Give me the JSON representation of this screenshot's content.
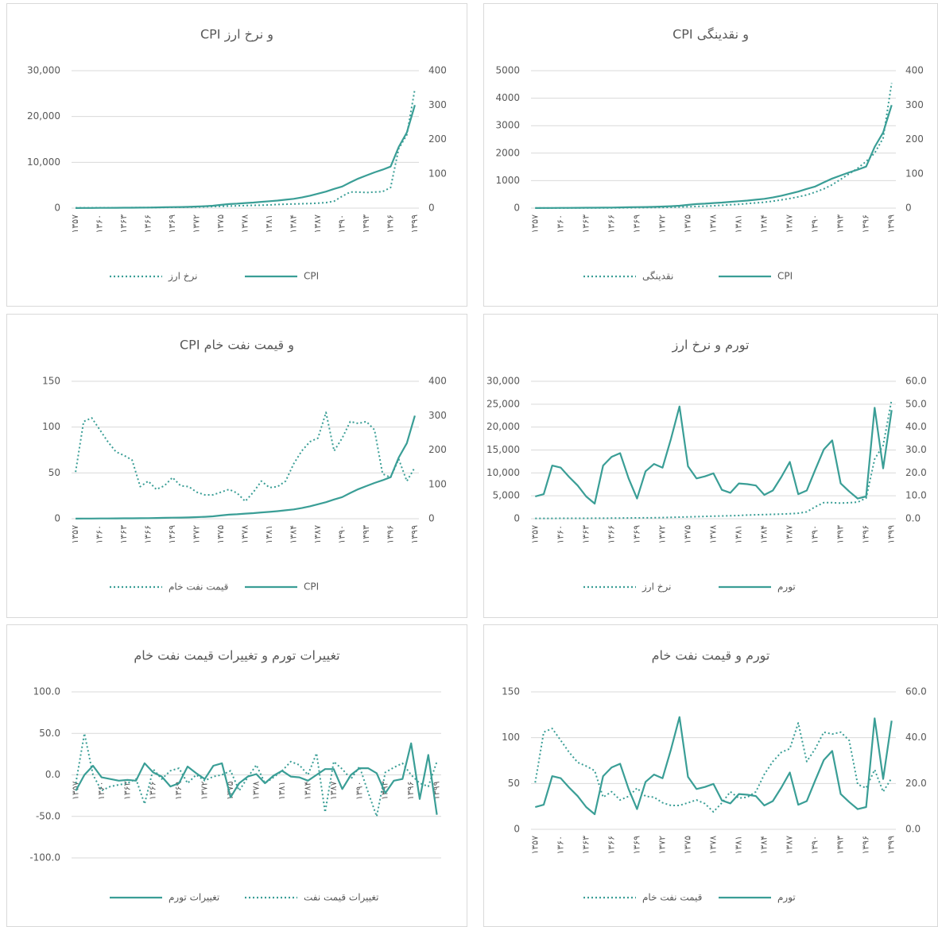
{
  "chart_data": [
    {
      "type": "line",
      "title": "CPI و نرخ ارز",
      "categories": [
        "۱۳۵۷",
        null,
        null,
        "۱۳۶۰",
        null,
        null,
        "۱۳۶۳",
        null,
        null,
        "۱۳۶۶",
        null,
        null,
        "۱۳۶۹",
        null,
        null,
        "۱۳۷۲",
        null,
        null,
        "۱۳۷۵",
        null,
        null,
        "۱۳۷۸",
        null,
        null,
        "۱۳۸۱",
        null,
        null,
        "۱۳۸۴",
        null,
        null,
        "۱۳۸۷",
        null,
        null,
        "۱۳۹۰",
        null,
        null,
        "۱۳۹۳",
        null,
        null,
        "۱۳۹۶",
        null,
        null,
        "۱۳۹۹"
      ],
      "ylim": [
        0,
        30000
      ],
      "yticks": [
        0,
        {
          "value": 10000,
          "label": "10,000"
        },
        {
          "value": 20000,
          "label": "20,000"
        },
        {
          "value": 30000,
          "label": "30,000"
        }
      ],
      "y2lim": [
        0,
        400
      ],
      "y2ticks": [
        0,
        100,
        200,
        300,
        400
      ],
      "grid": true,
      "series": [
        {
          "name": "CPI",
          "color": "#3a9e96",
          "style": "solid",
          "axis": "y2",
          "values": [
            0.3,
            0.4,
            0.5,
            0.6,
            0.7,
            0.9,
            1.1,
            1.2,
            1.4,
            1.7,
            2.1,
            2.5,
            2.9,
            3.3,
            3.8,
            4.6,
            5.6,
            7.0,
            9.4,
            11.7,
            12.9,
            14.7,
            16.3,
            18.2,
            20.0,
            22.0,
            24.5,
            27.0,
            31.0,
            36.0,
            42.0,
            48.0,
            56.0,
            63.0,
            75.0,
            86.0,
            95.0,
            104.0,
            112.0,
            121.0,
            178.0,
            220.0,
            300.0
          ]
        },
        {
          "name": "نرخ ارز",
          "color": "#3a9e96",
          "style": "dotted",
          "values": [
            70,
            70,
            70,
            80,
            85,
            90,
            95,
            100,
            110,
            120,
            140,
            150,
            170,
            190,
            200,
            250,
            300,
            350,
            400,
            450,
            500,
            550,
            600,
            650,
            700,
            800,
            850,
            900,
            950,
            1000,
            1100,
            1200,
            1500,
            2600,
            3500,
            3500,
            3400,
            3500,
            3600,
            4500,
            13000,
            16000,
            26000
          ]
        }
      ]
    },
    {
      "type": "line",
      "title": "CPI و نقدینگی",
      "categories": [
        "۱۳۵۷",
        null,
        null,
        "۱۳۶۰",
        null,
        null,
        "۱۳۶۳",
        null,
        null,
        "۱۳۶۶",
        null,
        null,
        "۱۳۶۹",
        null,
        null,
        "۱۳۷۲",
        null,
        null,
        "۱۳۷۵",
        null,
        null,
        "۱۳۷۸",
        null,
        null,
        "۱۳۸۱",
        null,
        null,
        "۱۳۸۴",
        null,
        null,
        "۱۳۸۷",
        null,
        null,
        "۱۳۹۰",
        null,
        null,
        "۱۳۹۳",
        null,
        null,
        "۱۳۹۶",
        null,
        null,
        "۱۳۹۹"
      ],
      "ylim": [
        0,
        5000
      ],
      "yticks": [
        0,
        1000,
        2000,
        3000,
        4000,
        5000
      ],
      "y2lim": [
        0,
        400
      ],
      "y2ticks": [
        0,
        100,
        200,
        300,
        400
      ],
      "grid": true,
      "series": [
        {
          "name": "CPI",
          "color": "#3a9e96",
          "style": "solid",
          "axis": "y2",
          "values": [
            0.3,
            0.4,
            0.5,
            0.6,
            0.7,
            0.9,
            1.1,
            1.2,
            1.4,
            1.7,
            2.1,
            2.5,
            2.9,
            3.3,
            3.8,
            4.6,
            5.6,
            7.0,
            9.4,
            11.7,
            12.9,
            14.7,
            16.3,
            18.2,
            20.0,
            22.0,
            24.5,
            27.0,
            31.0,
            36.0,
            42.0,
            48.0,
            56.0,
            63.0,
            75.0,
            86.0,
            95.0,
            104.0,
            112.0,
            121.0,
            178.0,
            220.0,
            300.0
          ]
        },
        {
          "name": "نقدینگی",
          "color": "#3a9e96",
          "style": "dotted",
          "values": [
            2,
            3,
            3,
            4,
            5,
            6,
            7,
            8,
            9,
            10,
            12,
            14,
            16,
            19,
            22,
            26,
            32,
            40,
            50,
            60,
            70,
            85,
            100,
            120,
            140,
            165,
            190,
            215,
            250,
            300,
            350,
            410,
            480,
            580,
            700,
            850,
            1050,
            1250,
            1450,
            1700,
            2000,
            2550,
            4550
          ]
        }
      ]
    },
    {
      "type": "line",
      "title": "CPI و قیمت نفت خام",
      "categories": [
        "۱۳۵۷",
        null,
        null,
        "۱۳۶۰",
        null,
        null,
        "۱۳۶۳",
        null,
        null,
        "۱۳۶۶",
        null,
        null,
        "۱۳۶۹",
        null,
        null,
        "۱۳۷۲",
        null,
        null,
        "۱۳۷۵",
        null,
        null,
        "۱۳۷۸",
        null,
        null,
        "۱۳۸۱",
        null,
        null,
        "۱۳۸۴",
        null,
        null,
        "۱۳۸۷",
        null,
        null,
        "۱۳۹۰",
        null,
        null,
        "۱۳۹۳",
        null,
        null,
        "۱۳۹۶",
        null,
        null,
        "۱۳۹۹"
      ],
      "ylim": [
        0,
        150
      ],
      "yticks": [
        0,
        50,
        100,
        150
      ],
      "y2lim": [
        0,
        400
      ],
      "y2ticks": [
        0,
        100,
        200,
        300,
        400
      ],
      "grid": true,
      "series": [
        {
          "name": "CPI",
          "color": "#3a9e96",
          "style": "solid",
          "axis": "y2",
          "values": [
            0.3,
            0.4,
            0.5,
            0.6,
            0.7,
            0.9,
            1.1,
            1.2,
            1.4,
            1.7,
            2.1,
            2.5,
            2.9,
            3.3,
            3.8,
            4.6,
            5.6,
            7.0,
            9.4,
            11.7,
            12.9,
            14.7,
            16.3,
            18.2,
            20.0,
            22.0,
            24.5,
            27.0,
            31.0,
            36.0,
            42.0,
            48.0,
            56.0,
            63.0,
            75.0,
            86.0,
            95.0,
            104.0,
            112.0,
            121.0,
            178.0,
            220.0,
            300.0
          ]
        },
        {
          "name": "قیمت نفت خام",
          "color": "#3a9e96",
          "style": "dotted",
          "values": [
            51,
            106,
            110,
            97,
            84,
            73,
            69,
            64,
            35,
            41,
            32,
            36,
            45,
            36,
            35,
            29,
            26,
            26,
            29,
            32,
            28,
            19,
            29,
            41,
            34,
            35,
            41,
            60,
            74,
            84,
            88,
            116,
            74,
            88,
            106,
            104,
            106,
            97,
            49,
            45,
            65,
            41,
            56
          ]
        }
      ]
    },
    {
      "type": "line",
      "title": "تورم و نرخ ارز",
      "categories": [
        "۱۳۵۷",
        null,
        null,
        "۱۳۶۰",
        null,
        null,
        "۱۳۶۳",
        null,
        null,
        "۱۳۶۶",
        null,
        null,
        "۱۳۶۹",
        null,
        null,
        "۱۳۷۲",
        null,
        null,
        "۱۳۷۵",
        null,
        null,
        "۱۳۷۸",
        null,
        null,
        "۱۳۸۱",
        null,
        null,
        "۱۳۸۴",
        null,
        null,
        "۱۳۸۷",
        null,
        null,
        "۱۳۹۰",
        null,
        null,
        "۱۳۹۳",
        null,
        null,
        "۱۳۹۶",
        null,
        null,
        "۱۳۹۹"
      ],
      "ylim": [
        0,
        30000
      ],
      "yticks": [
        0,
        {
          "value": 5000,
          "label": "5,000"
        },
        {
          "value": 10000,
          "label": "10,000"
        },
        {
          "value": 15000,
          "label": "15,000"
        },
        {
          "value": 20000,
          "label": "20,000"
        },
        {
          "value": 25000,
          "label": "25,000"
        },
        {
          "value": 30000,
          "label": "30,000"
        }
      ],
      "y2lim": [
        0,
        60
      ],
      "y2ticks": [
        {
          "value": 0,
          "label": "0.0"
        },
        {
          "value": 10,
          "label": "10.0"
        },
        {
          "value": 20,
          "label": "20.0"
        },
        {
          "value": 30,
          "label": "30.0"
        },
        {
          "value": 40,
          "label": "40.0"
        },
        {
          "value": 50,
          "label": "50.0"
        },
        {
          "value": 60,
          "label": "60.0"
        }
      ],
      "grid": true,
      "series": [
        {
          "name": "تورم",
          "color": "#3a9e96",
          "style": "solid",
          "axis": "y2",
          "values": [
            9.7,
            10.7,
            23.2,
            22.3,
            18.2,
            14.5,
            9.7,
            6.6,
            23.2,
            27.0,
            28.6,
            17.6,
            8.8,
            20.7,
            23.9,
            22.3,
            34.9,
            49.0,
            22.9,
            17.6,
            18.5,
            19.8,
            12.6,
            11.3,
            15.4,
            15.1,
            14.5,
            10.4,
            12.3,
            18.2,
            24.8,
            10.7,
            12.3,
            21.4,
            30.2,
            34.2,
            15.4,
            11.9,
            8.8,
            9.7,
            48.4,
            22.0,
            47.4
          ]
        },
        {
          "name": "نرخ ارز",
          "color": "#3a9e96",
          "style": "dotted",
          "values": [
            70,
            70,
            70,
            80,
            85,
            90,
            95,
            100,
            110,
            120,
            140,
            150,
            170,
            190,
            200,
            250,
            300,
            350,
            400,
            450,
            500,
            550,
            600,
            650,
            700,
            800,
            850,
            900,
            950,
            1000,
            1100,
            1200,
            1500,
            2600,
            3500,
            3500,
            3400,
            3500,
            3600,
            4500,
            13000,
            16000,
            26000
          ]
        }
      ]
    },
    {
      "type": "line",
      "title": "تغییرات تورم و تغییرات قیمت نفت خام",
      "categories": [
        "۱۳۵۷",
        null,
        null,
        "۱۳۶۰",
        null,
        null,
        "۱۳۶۳",
        null,
        null,
        "۱۳۶۶",
        null,
        null,
        "۱۳۶۹",
        null,
        null,
        "۱۳۷۲",
        null,
        null,
        "۱۳۷۵",
        null,
        null,
        "۱۳۷۸",
        null,
        null,
        "۱۳۸۱",
        null,
        null,
        "۱۳۸۴",
        null,
        null,
        "۱۳۸۷",
        null,
        null,
        "۱۳۹۰",
        null,
        null,
        "۱۳۹۳",
        null,
        null,
        "۱۳۹۶",
        null,
        null,
        "۱۳۹۹"
      ],
      "ylim": [
        -100,
        100
      ],
      "yticks": [
        {
          "value": -100,
          "label": "-100.0"
        },
        {
          "value": -50,
          "label": "-50.0"
        },
        {
          "value": 0,
          "label": "0.0"
        },
        {
          "value": 50,
          "label": "50.0"
        },
        {
          "value": 100,
          "label": "100.0"
        }
      ],
      "grid": true,
      "series": [
        {
          "name": "تغییرات قیمت نفت",
          "color": "#3a9e96",
          "style": "dotted",
          "values": [
            -10,
            50,
            0,
            -19,
            -14,
            -12,
            -10,
            -5,
            -35,
            7,
            -5,
            5,
            8,
            -10,
            0,
            -7,
            -2,
            0,
            5,
            -19,
            -3,
            12,
            -10,
            -3,
            5,
            16,
            12,
            0,
            26,
            -45,
            16,
            7,
            -5,
            10,
            -21,
            -50,
            3,
            9,
            14,
            0,
            -10,
            -14,
            16
          ]
        },
        {
          "name": "تغییرات تورم",
          "color": "#3a9e96",
          "style": "solid",
          "values": [
            -19,
            0,
            11,
            -3,
            -5,
            -7,
            -6,
            -7,
            14,
            3,
            -2,
            -14,
            -10,
            10,
            2,
            -5,
            11,
            14,
            -27,
            -10,
            -2,
            1,
            -10,
            -1,
            5,
            -2,
            -3,
            -7,
            0,
            7,
            7,
            -17,
            0,
            8,
            8,
            2,
            -22,
            -7,
            -5,
            38,
            -29,
            24,
            -48
          ]
        }
      ]
    },
    {
      "type": "line",
      "title": "تورم و قیمت نفت خام",
      "categories": [
        "۱۳۵۷",
        null,
        null,
        "۱۳۶۰",
        null,
        null,
        "۱۳۶۳",
        null,
        null,
        "۱۳۶۶",
        null,
        null,
        "۱۳۶۹",
        null,
        null,
        "۱۳۷۲",
        null,
        null,
        "۱۳۷۵",
        null,
        null,
        "۱۳۷۸",
        null,
        null,
        "۱۳۸۱",
        null,
        null,
        "۱۳۸۴",
        null,
        null,
        "۱۳۸۷",
        null,
        null,
        "۱۳۹۰",
        null,
        null,
        "۱۳۹۳",
        null,
        null,
        "۱۳۹۶",
        null,
        null,
        "۱۳۹۹"
      ],
      "ylim": [
        0,
        150
      ],
      "yticks": [
        0,
        50,
        100,
        150
      ],
      "y2lim": [
        0,
        60
      ],
      "y2ticks": [
        {
          "value": 0,
          "label": "0.0"
        },
        {
          "value": 20,
          "label": "20.0"
        },
        {
          "value": 40,
          "label": "40.0"
        },
        {
          "value": 60,
          "label": "60.0"
        }
      ],
      "grid": true,
      "series": [
        {
          "name": "تورم",
          "color": "#3a9e96",
          "style": "solid",
          "axis": "y2",
          "values": [
            9.7,
            10.7,
            23.2,
            22.3,
            18.2,
            14.5,
            9.7,
            6.6,
            23.2,
            27.0,
            28.6,
            17.6,
            8.8,
            20.7,
            23.9,
            22.3,
            34.9,
            49.0,
            22.9,
            17.6,
            18.5,
            19.8,
            12.6,
            11.3,
            15.4,
            15.1,
            14.5,
            10.4,
            12.3,
            18.2,
            24.8,
            10.7,
            12.3,
            21.4,
            30.2,
            34.2,
            15.4,
            11.9,
            8.8,
            9.7,
            48.4,
            22.0,
            47.4
          ]
        },
        {
          "name": "قیمت نفت خام",
          "color": "#3a9e96",
          "style": "dotted",
          "values": [
            51,
            106,
            110,
            97,
            84,
            73,
            69,
            64,
            35,
            41,
            32,
            36,
            45,
            36,
            35,
            29,
            26,
            26,
            29,
            32,
            28,
            19,
            29,
            41,
            34,
            35,
            41,
            60,
            74,
            84,
            88,
            116,
            74,
            88,
            106,
            104,
            106,
            97,
            49,
            45,
            65,
            41,
            56
          ]
        }
      ]
    }
  ]
}
